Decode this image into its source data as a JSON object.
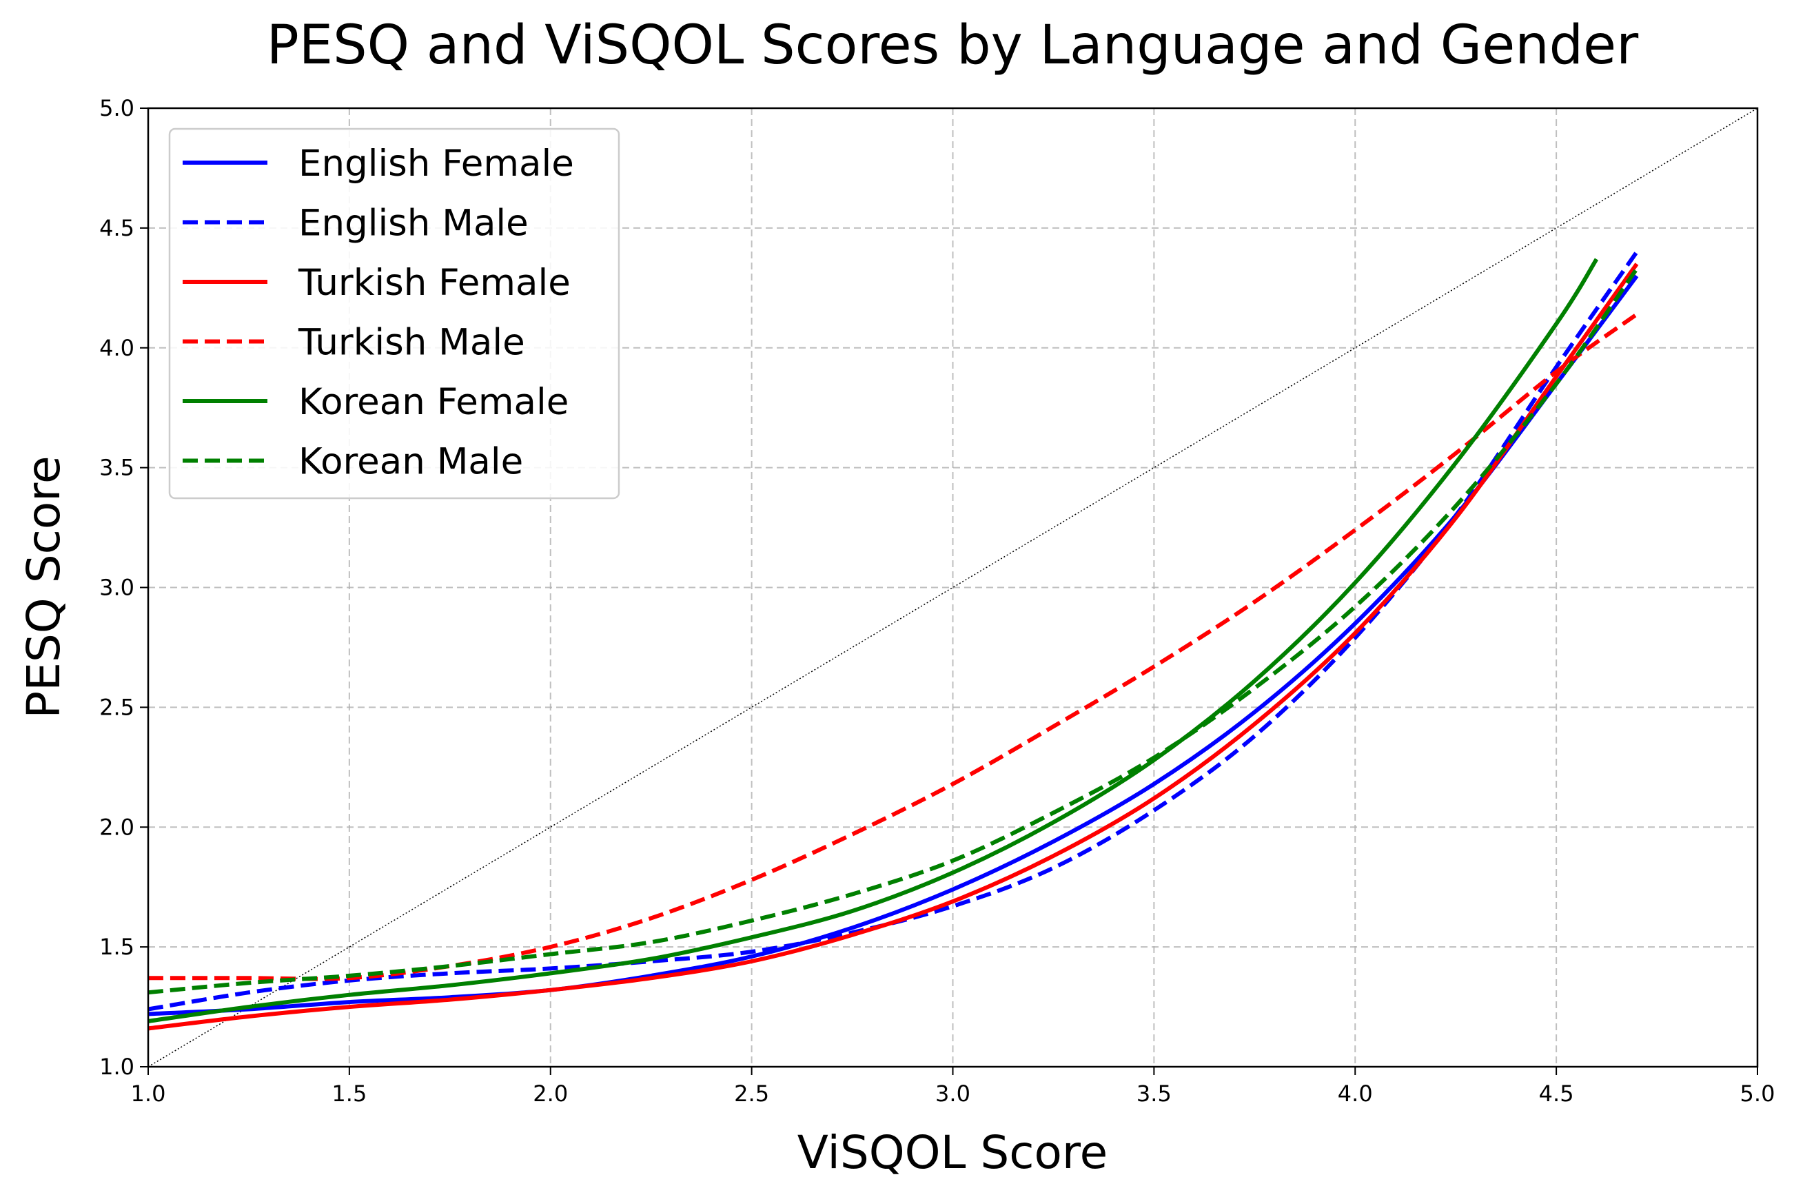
{
  "chart_data": {
    "type": "line",
    "title": "PESQ and ViSQOL Scores by Language and Gender",
    "xlabel": "ViSQOL Score",
    "ylabel": "PESQ Score",
    "xlim": [
      1.0,
      5.0
    ],
    "ylim": [
      1.0,
      5.0
    ],
    "xticks": [
      "1.0",
      "1.5",
      "2.0",
      "2.5",
      "3.0",
      "3.5",
      "4.0",
      "4.5",
      "5.0"
    ],
    "yticks": [
      "1.0",
      "1.5",
      "2.0",
      "2.5",
      "3.0",
      "3.5",
      "4.0",
      "4.5",
      "5.0"
    ],
    "grid": true,
    "legend_position": "upper-left",
    "reference_line": {
      "x": [
        1.0,
        5.0
      ],
      "y": [
        1.0,
        5.0
      ],
      "style": "dotted",
      "color": "#000000"
    },
    "series": [
      {
        "name": "English Female",
        "color": "#0000ff",
        "style": "solid",
        "x": [
          1.0,
          1.25,
          1.5,
          1.75,
          2.0,
          2.25,
          2.5,
          2.75,
          3.0,
          3.25,
          3.5,
          3.75,
          4.0,
          4.25,
          4.5,
          4.7
        ],
        "y": [
          1.22,
          1.24,
          1.27,
          1.29,
          1.32,
          1.38,
          1.46,
          1.58,
          1.74,
          1.94,
          2.18,
          2.48,
          2.85,
          3.3,
          3.85,
          4.3
        ]
      },
      {
        "name": "English Male",
        "color": "#0000ff",
        "style": "dashed",
        "x": [
          1.0,
          1.25,
          1.5,
          1.75,
          2.0,
          2.25,
          2.5,
          2.75,
          3.0,
          3.25,
          3.5,
          3.75,
          4.0,
          4.25,
          4.5,
          4.7
        ],
        "y": [
          1.24,
          1.31,
          1.36,
          1.39,
          1.41,
          1.44,
          1.48,
          1.56,
          1.67,
          1.83,
          2.07,
          2.38,
          2.79,
          3.3,
          3.92,
          4.4
        ]
      },
      {
        "name": "Turkish Female",
        "color": "#ff0000",
        "style": "solid",
        "x": [
          1.0,
          1.25,
          1.5,
          1.75,
          2.0,
          2.25,
          2.5,
          2.75,
          3.0,
          3.25,
          3.5,
          3.75,
          4.0,
          4.25,
          4.5,
          4.7
        ],
        "y": [
          1.16,
          1.21,
          1.25,
          1.28,
          1.32,
          1.37,
          1.44,
          1.55,
          1.69,
          1.88,
          2.12,
          2.43,
          2.81,
          3.29,
          3.88,
          4.35
        ]
      },
      {
        "name": "Turkish Male",
        "color": "#ff0000",
        "style": "dashed",
        "x": [
          1.0,
          1.25,
          1.5,
          1.75,
          2.0,
          2.25,
          2.5,
          2.75,
          3.0,
          3.25,
          3.5,
          3.75,
          4.0,
          4.25,
          4.5,
          4.7
        ],
        "y": [
          1.37,
          1.37,
          1.37,
          1.42,
          1.5,
          1.62,
          1.78,
          1.97,
          2.18,
          2.42,
          2.67,
          2.94,
          3.24,
          3.56,
          3.9,
          4.14
        ]
      },
      {
        "name": "Korean Female",
        "color": "#008000",
        "style": "solid",
        "x": [
          1.0,
          1.25,
          1.5,
          1.75,
          2.0,
          2.25,
          2.5,
          2.75,
          3.0,
          3.25,
          3.5,
          3.75,
          4.0,
          4.25,
          4.5,
          4.6
        ],
        "y": [
          1.19,
          1.25,
          1.3,
          1.34,
          1.39,
          1.45,
          1.54,
          1.65,
          1.81,
          2.02,
          2.28,
          2.61,
          3.02,
          3.52,
          4.1,
          4.37
        ]
      },
      {
        "name": "Korean Male",
        "color": "#008000",
        "style": "dashed",
        "x": [
          1.0,
          1.25,
          1.5,
          1.75,
          2.0,
          2.25,
          2.5,
          2.75,
          3.0,
          3.25,
          3.5,
          3.75,
          4.0,
          4.25,
          4.5,
          4.7
        ],
        "y": [
          1.31,
          1.35,
          1.38,
          1.42,
          1.47,
          1.52,
          1.61,
          1.72,
          1.86,
          2.06,
          2.29,
          2.58,
          2.92,
          3.34,
          3.85,
          4.33
        ]
      }
    ]
  }
}
